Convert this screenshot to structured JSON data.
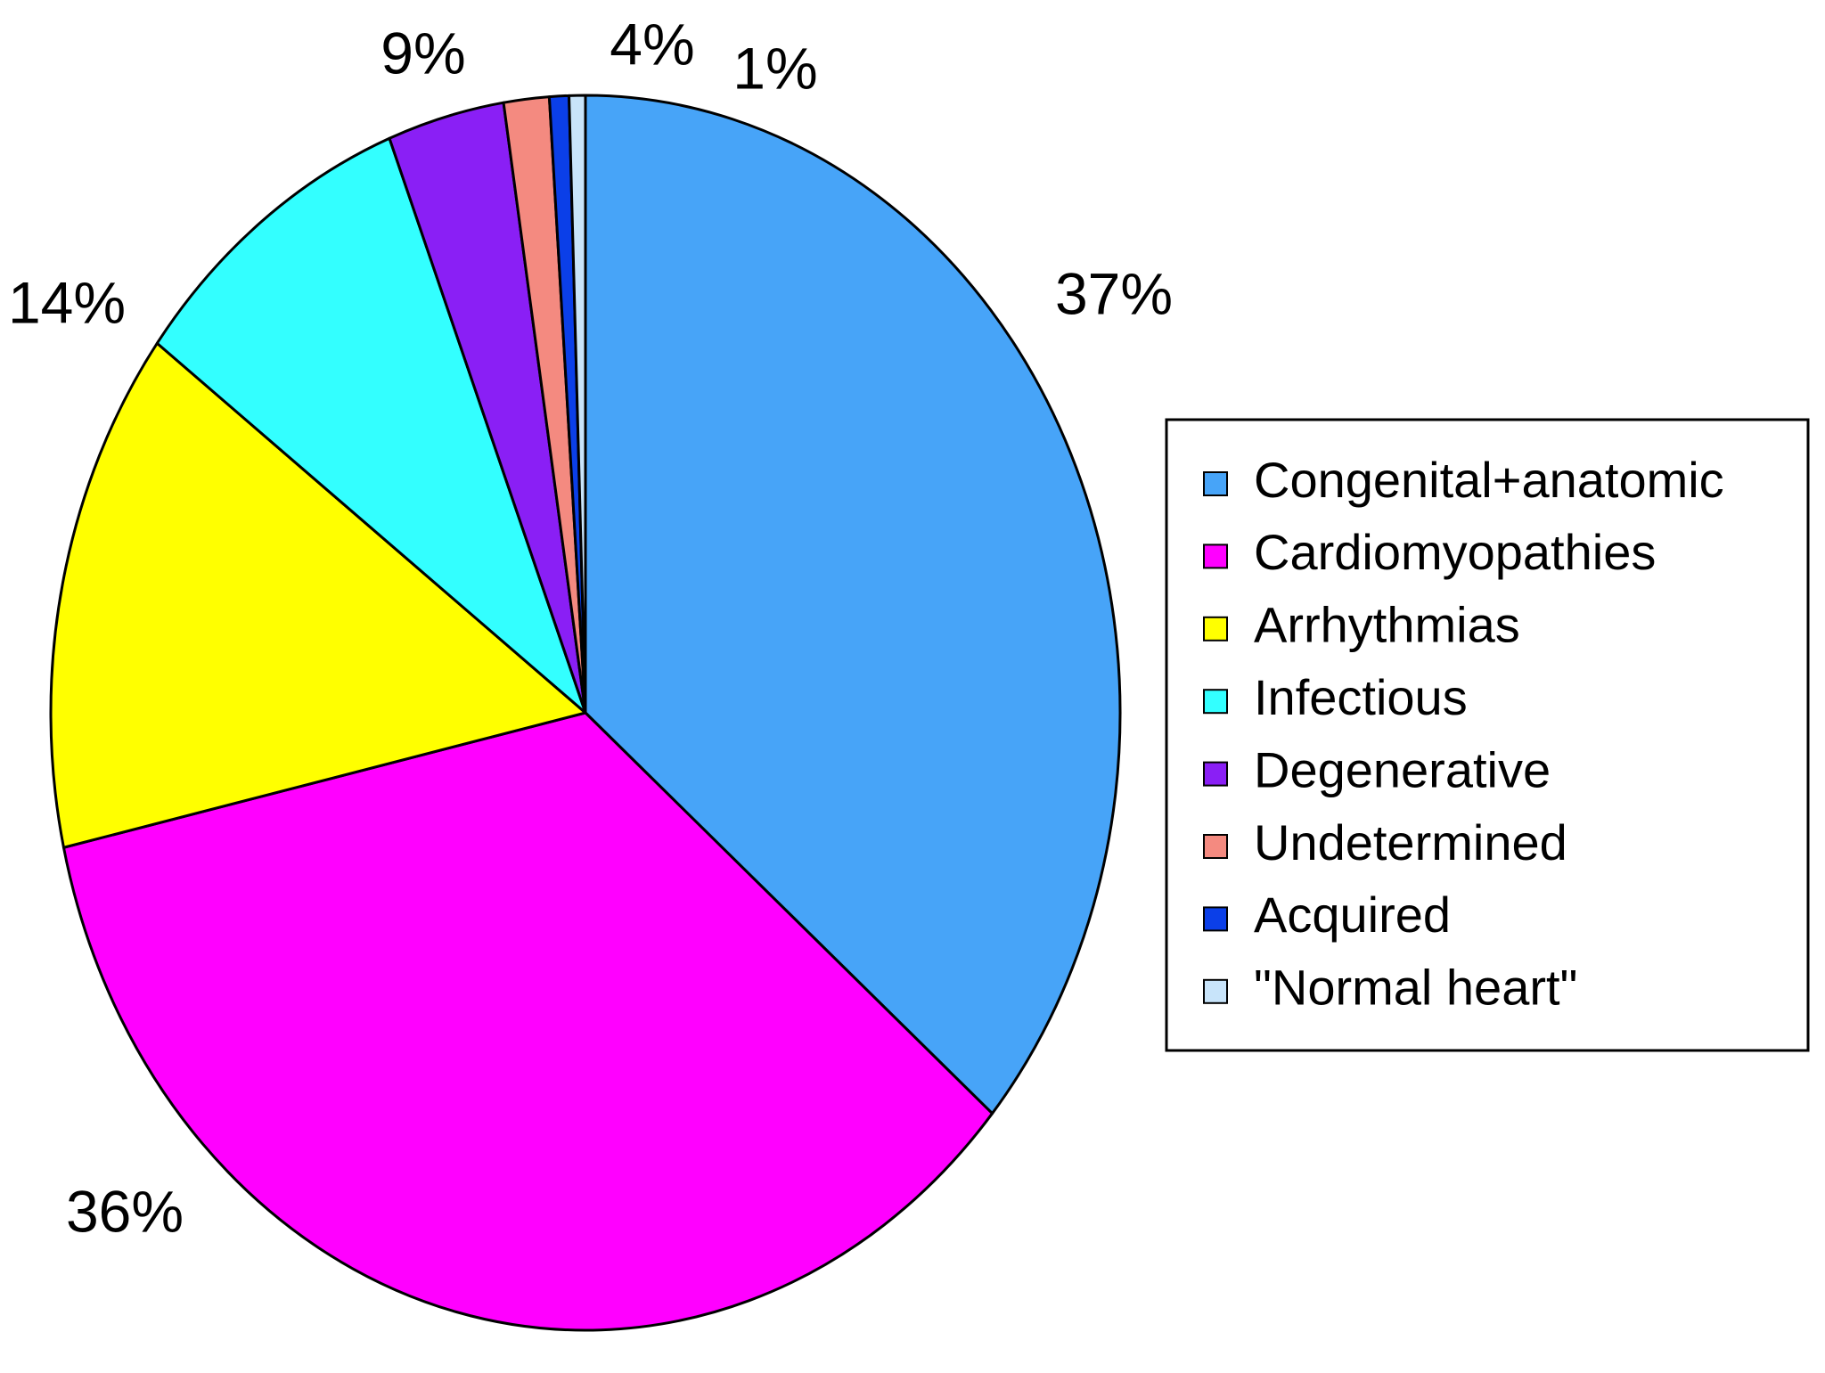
{
  "chart_data": {
    "type": "pie",
    "title": "",
    "legend_position": "right",
    "start_angle": "top, clockwise",
    "slices": [
      {
        "name": "Congenital+anatomic",
        "value": 37.0,
        "label": "37%",
        "color": "#47a4f8"
      },
      {
        "name": "Cardiomyopathies",
        "value": 36.0,
        "label": "36%",
        "color": "#ff00ff"
      },
      {
        "name": "Arrhythmias",
        "value": 14.0,
        "label": "14%",
        "color": "#ffff00"
      },
      {
        "name": "Infectious",
        "value": 9.0,
        "label": "9%",
        "color": "#33ffff"
      },
      {
        "name": "Degenerative",
        "value": 3.6,
        "label": "4%",
        "color": "#8a1ff5"
      },
      {
        "name": "Undetermined",
        "value": 1.4,
        "label": "1%",
        "color": "#f48a80"
      },
      {
        "name": "Acquired",
        "value": 0.6,
        "label": "",
        "color": "#0b3fe8"
      },
      {
        "name": "\"Normal heart\"",
        "value": 0.5,
        "label": "",
        "color": "#c8e4fa"
      }
    ]
  }
}
